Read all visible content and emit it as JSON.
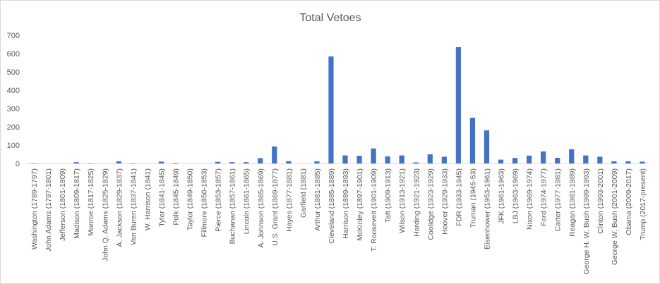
{
  "chart_data": {
    "type": "bar",
    "title": "Total Vetoes",
    "xlabel": "",
    "ylabel": "",
    "ylim": [
      0,
      700
    ],
    "yticks": [
      0,
      100,
      200,
      300,
      400,
      500,
      600,
      700
    ],
    "grid": false,
    "legend": "none",
    "bar_color": "#4472C4",
    "categories": [
      "Washington (1789-1797)",
      "John Adams (1797-1801)",
      "Jefferson (1801-1809)",
      "Madison (1809-1817)",
      "Monroe (1817-1825)",
      "John Q. Adams (1825-1829)",
      "A. Jackson (1829-1837)",
      "Van Buren (1837-1841)",
      "W. Harrison (1841)",
      "Tyler (1841-1845)",
      "Polk (1845-1849)",
      "Taylor (1849-1850)",
      "Fillmore (1850-1853)",
      "Pierce (1853-1857)",
      "Buchanan (1857-1861)",
      "Lincoln (1861-1865)",
      "A. Johnson (1865-1869)",
      "U.S. Grant (1869-1877)",
      "Hayes (1877-1881)",
      "Garfield (1881)",
      "Arthur (1881-1885)",
      "Cleveland (1885-1889)",
      "Harrison (1889-1893)",
      "McKinley (1897-1901)",
      "T. Roosevelt (1901-1909)",
      "Taft (1909-1913)",
      "Wilson (1913-1921)",
      "Harding (1921-1923)",
      "Coolidge (1923-1929)",
      "Hoover (1929-1933)",
      "FDR (1933-1945)",
      "Truman (1945-53)",
      "Eisenhower (1953-1961)",
      "JFK (1961-1963)",
      "LBJ (1963-1969)",
      "Nixon (1969-1974)",
      "Ford (1974-1977)",
      "Carter (1977-1981)",
      "Reagan (1981-1989)",
      "George H. W. Bush (1989-1993)",
      "Clinton (1993-2001)",
      "George W. Bush (2001-2009)",
      "Obama (2009-2017)",
      "Trump (2017-present)"
    ],
    "values": [
      2,
      0,
      0,
      7,
      1,
      0,
      12,
      1,
      0,
      10,
      3,
      0,
      0,
      9,
      7,
      7,
      29,
      93,
      13,
      0,
      12,
      584,
      44,
      42,
      82,
      39,
      44,
      6,
      50,
      37,
      635,
      250,
      181,
      21,
      30,
      43,
      66,
      31,
      78,
      44,
      37,
      12,
      12,
      10
    ]
  }
}
